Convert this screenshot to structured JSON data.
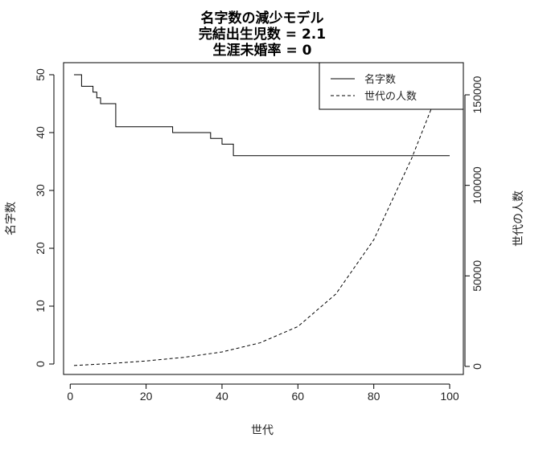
{
  "chart_data": {
    "type": "line",
    "title_lines": [
      "名字数の減少モデル",
      "完結出生児数 = 2.1",
      "生涯未婚率 = 0"
    ],
    "xlabel": "世代",
    "ylabel_left": "名字数",
    "ylabel_right": "世代の人数",
    "xlim": [
      1,
      100
    ],
    "ylim_left": [
      0,
      50
    ],
    "ylim_right": [
      0,
      160000
    ],
    "xticks": [
      0,
      20,
      40,
      60,
      80,
      100
    ],
    "yticks_left": [
      0,
      10,
      20,
      30,
      40,
      50
    ],
    "yticks_right": [
      0,
      50000,
      100000,
      150000
    ],
    "grid": false,
    "legend_position": "top-right",
    "series": [
      {
        "name": "名字数",
        "axis": "left",
        "style": "solid",
        "step": true,
        "x": [
          1,
          2,
          3,
          5,
          6,
          7,
          8,
          12,
          26,
          27,
          34,
          37,
          40,
          43,
          100
        ],
        "y": [
          50,
          50,
          48,
          48,
          47,
          46,
          45,
          41,
          41,
          40,
          40,
          39,
          38,
          36,
          36
        ]
      },
      {
        "name": "世代の人数",
        "axis": "right",
        "style": "dashed",
        "x": [
          1,
          10,
          20,
          30,
          40,
          50,
          60,
          70,
          80,
          90,
          97
        ],
        "y": [
          500,
          1500,
          3000,
          5000,
          8000,
          13000,
          22000,
          40000,
          70000,
          115000,
          152000
        ]
      }
    ]
  }
}
